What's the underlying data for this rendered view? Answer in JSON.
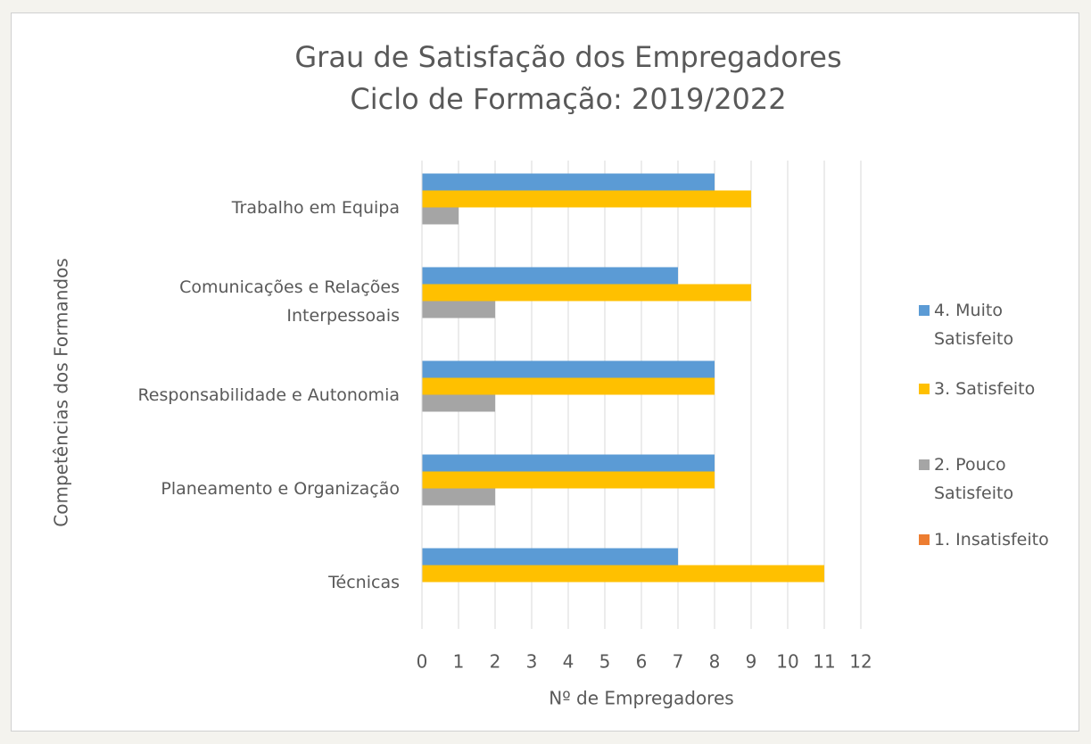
{
  "chart_data": {
    "type": "bar",
    "orientation": "horizontal",
    "title": "Grau de Satisfação dos Empregadores",
    "subtitle": "Ciclo de Formação: 2019/2022",
    "x_label": "Nº de Empregadores",
    "y_label": "Competências dos Formandos",
    "categories": [
      "Trabalho em Equipa",
      "Comunicações e Relações\nInterpessoais",
      "Responsabilidade e Autonomia",
      "Planeamento e Organização",
      "Técnicas"
    ],
    "series": [
      {
        "name": "4. Muito\nSatisfeito",
        "color": "#5b9bd5",
        "values": [
          8,
          7,
          8,
          8,
          7
        ]
      },
      {
        "name": "3. Satisfeito",
        "color": "#ffc000",
        "values": [
          9,
          9,
          8,
          8,
          11
        ]
      },
      {
        "name": "2. Pouco\nSatisfeito",
        "color": "#a5a5a5",
        "values": [
          1,
          2,
          2,
          2,
          0
        ]
      },
      {
        "name": "1. Insatisfeito",
        "color": "#ed7d31",
        "values": [
          0,
          0,
          0,
          0,
          0
        ]
      }
    ],
    "xlim": [
      0,
      12
    ],
    "xticks": [
      0,
      1,
      2,
      3,
      4,
      5,
      6,
      7,
      8,
      9,
      10,
      11,
      12
    ],
    "grid": true,
    "legend": "right"
  }
}
